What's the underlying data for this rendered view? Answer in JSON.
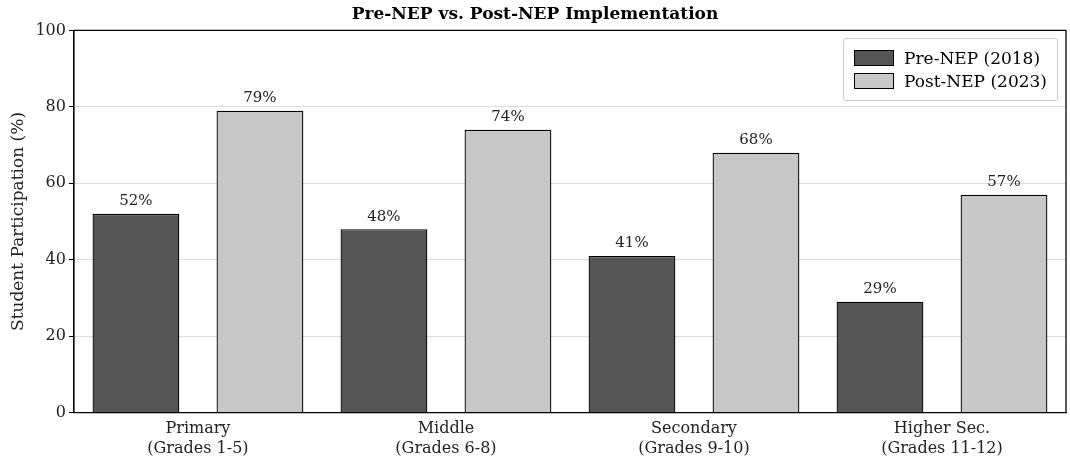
{
  "chart_data": {
    "type": "bar",
    "title": "Pre-NEP vs. Post-NEP Implementation",
    "ylabel": "Student Participation (%)",
    "categories": [
      "Primary\n(Grades 1-5)",
      "Middle\n(Grades 6-8)",
      "Secondary\n(Grades 9-10)",
      "Higher Sec.\n(Grades 11-12)"
    ],
    "series": [
      {
        "name": "Pre-NEP (2018)",
        "color": "#555555",
        "values": [
          52,
          48,
          41,
          29
        ],
        "value_labels": [
          "52%",
          "48%",
          "41%",
          "29%"
        ]
      },
      {
        "name": "Post-NEP (2023)",
        "color": "#c8c8c8",
        "values": [
          79,
          74,
          68,
          57
        ],
        "value_labels": [
          "79%",
          "74%",
          "68%",
          "57%"
        ]
      }
    ],
    "ylim": [
      0,
      100
    ],
    "yticks": [
      0,
      20,
      40,
      60,
      80,
      100
    ],
    "grid": "y",
    "legend": "top right"
  }
}
